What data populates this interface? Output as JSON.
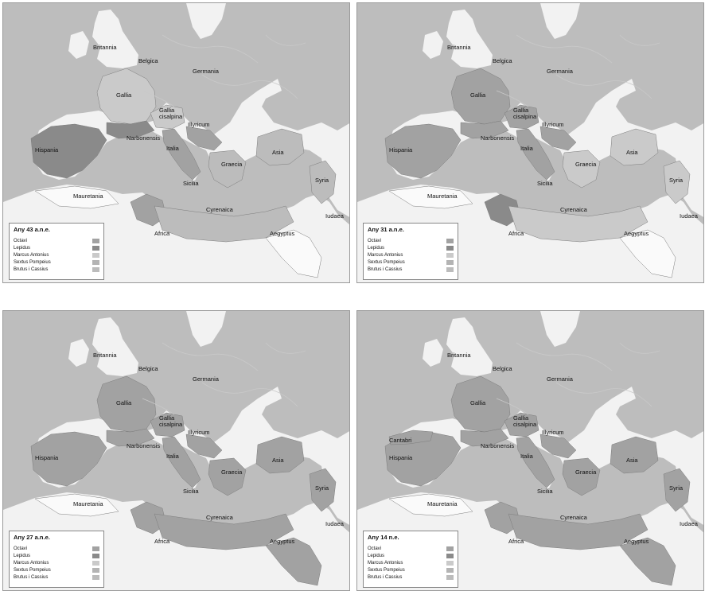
{
  "colors": {
    "sea": "#bdbdbd",
    "land": "#f2f2f2",
    "octavi": "#a2a2a2",
    "lepidus": "#8a8a8a",
    "antonius": "#cacaca",
    "pompeius": "#b4b4b4",
    "brutus": "#bcbcbc",
    "unclaimed": "#fafafa"
  },
  "legend_items": [
    "Octavi",
    "Lepidus",
    "Marcus Antonius",
    "Sextus Pompeius",
    "Brutus i Cassius"
  ],
  "panels": [
    {
      "title": "Any 43 a.n.e.",
      "labels": {
        "britannia": "Britannia",
        "belgica": "Belgica",
        "germania": "Germania",
        "gallia": "Gallia",
        "gallia_cisalpina": "Gallia cisalpina",
        "illyricum": "Illyricum",
        "narbonensis": "Narbonensis",
        "hispania": "Hispania",
        "italia": "Italia",
        "graecia": "Graecia",
        "asia": "Asia",
        "syria": "Syria",
        "sicilia": "Sicilia",
        "mauretania": "Mauretania",
        "cyrenaica": "Cyrenaica",
        "iudaea": "Iudaea",
        "africa": "Africa",
        "aegyptus": "Aegyptus"
      }
    },
    {
      "title": "Any 31 a.n.e.",
      "labels": {
        "britannia": "Britannia",
        "belgica": "Belgica",
        "germania": "Germania",
        "gallia": "Gallia",
        "gallia_cisalpina": "Gallia cisalpina",
        "illyricum": "Illyricum",
        "narbonensis": "Narbonensis",
        "hispania": "Hispania",
        "italia": "Italia",
        "graecia": "Graecia",
        "asia": "Asia",
        "syria": "Syria",
        "sicilia": "Sicilia",
        "mauretania": "Mauretania",
        "cyrenaica": "Cyrenaica",
        "iudaea": "Iudaea",
        "africa": "Africa",
        "aegyptus": "Aegyptus"
      }
    },
    {
      "title": "Any 27 a.n.e.",
      "labels": {
        "britannia": "Britannia",
        "belgica": "Belgica",
        "germania": "Germania",
        "gallia": "Gallia",
        "gallia_cisalpina": "Gallia cisalpina",
        "illyricum": "Illyricum",
        "narbonensis": "Narbonensis",
        "hispania": "Hispania",
        "italia": "Italia",
        "graecia": "Graecia",
        "asia": "Asia",
        "syria": "Syria",
        "sicilia": "Sicilia",
        "mauretania": "Mauretania",
        "cyrenaica": "Cyrenaica",
        "iudaea": "Iudaea",
        "africa": "Africa",
        "aegyptus": "Aegyptus"
      }
    },
    {
      "title": "Any 14 n.e.",
      "labels": {
        "britannia": "Britannia",
        "belgica": "Belgica",
        "germania": "Germania",
        "gallia": "Gallia",
        "gallia_cisalpina": "Gallia cisalpina",
        "illyricum": "Illyricum",
        "narbonensis": "Narbonensis",
        "hispania": "Hispania",
        "italia": "Italia",
        "graecia": "Graecia",
        "asia": "Asia",
        "syria": "Syria",
        "sicilia": "Sicilia",
        "mauretania": "Mauretania",
        "cyrenaica": "Cyrenaica",
        "iudaea": "Iudaea",
        "africa": "Africa",
        "aegyptus": "Aegyptus",
        "cantabri": "Cantabri"
      }
    }
  ]
}
